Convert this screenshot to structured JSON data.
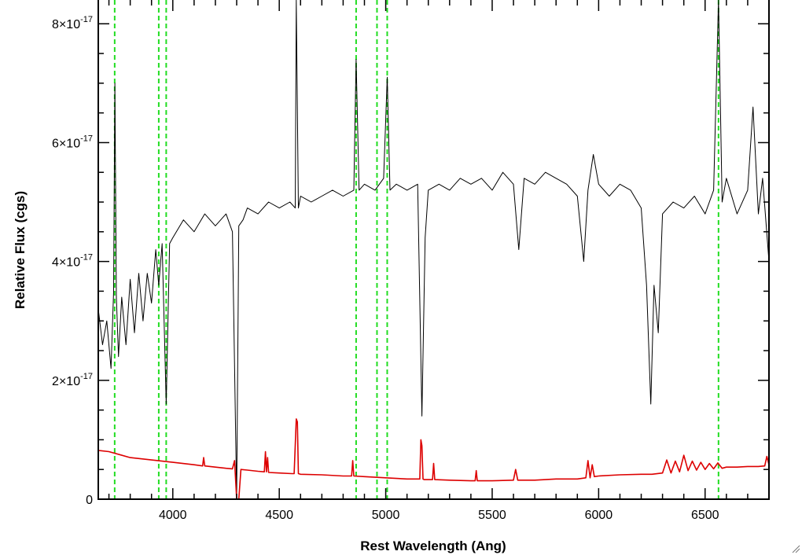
{
  "chart_data": {
    "type": "line",
    "xlabel": "Rest Wavelength (Ang)",
    "ylabel": "Relative Flux (cgs)",
    "xlim": [
      3650,
      6800
    ],
    "ylim": [
      0,
      8.4e-17
    ],
    "x_ticks": [
      {
        "value": 4000,
        "label": "4000"
      },
      {
        "value": 4500,
        "label": "4500"
      },
      {
        "value": 5000,
        "label": "5000"
      },
      {
        "value": 5500,
        "label": "5500"
      },
      {
        "value": 6000,
        "label": "6000"
      },
      {
        "value": 6500,
        "label": "6500"
      }
    ],
    "y_ticks": [
      {
        "value": 0,
        "mantissa": "0",
        "exponent": ""
      },
      {
        "value": 2e-17,
        "mantissa": "2×10",
        "exponent": "-17"
      },
      {
        "value": 4e-17,
        "mantissa": "4×10",
        "exponent": "-17"
      },
      {
        "value": 6e-17,
        "mantissa": "6×10",
        "exponent": "-17"
      },
      {
        "value": 8e-17,
        "mantissa": "8×10",
        "exponent": "-17"
      }
    ],
    "reference_lines": {
      "color": "#22dd22",
      "x": [
        3727,
        3934,
        3969,
        4861,
        4959,
        5007,
        6563
      ]
    },
    "series": [
      {
        "color": "#000000",
        "x": [
          3650,
          3670,
          3690,
          3710,
          3722,
          3728,
          3735,
          3745,
          3760,
          3780,
          3800,
          3820,
          3840,
          3860,
          3880,
          3900,
          3920,
          3934,
          3950,
          3969,
          3985,
          4000,
          4050,
          4100,
          4150,
          4200,
          4250,
          4280,
          4300,
          4310,
          4330,
          4350,
          4400,
          4450,
          4500,
          4550,
          4575,
          4580,
          4590,
          4600,
          4650,
          4700,
          4750,
          4800,
          4850,
          4861,
          4875,
          4900,
          4950,
          4990,
          5007,
          5020,
          5050,
          5100,
          5150,
          5170,
          5185,
          5200,
          5250,
          5300,
          5350,
          5400,
          5450,
          5500,
          5550,
          5600,
          5625,
          5650,
          5700,
          5750,
          5800,
          5850,
          5900,
          5930,
          5950,
          5975,
          6000,
          6050,
          6100,
          6150,
          6200,
          6225,
          6245,
          6260,
          6280,
          6300,
          6350,
          6400,
          6450,
          6500,
          6540,
          6563,
          6580,
          6600,
          6650,
          6700,
          6725,
          6750,
          6770,
          6800
        ],
        "y": [
          3.2e-17,
          2.6e-17,
          3e-17,
          2.2e-17,
          3.5e-17,
          7e-17,
          3.4e-17,
          2.4e-17,
          3.4e-17,
          2.6e-17,
          3.7e-17,
          2.8e-17,
          3.8e-17,
          3e-17,
          3.8e-17,
          3.3e-17,
          4.2e-17,
          3.6e-17,
          4.3e-17,
          1.6e-17,
          4.3e-17,
          4.4e-17,
          4.7e-17,
          4.5e-17,
          4.8e-17,
          4.6e-17,
          4.8e-17,
          4.5e-17,
          0.0,
          4.6e-17,
          4.7e-17,
          4.9e-17,
          4.8e-17,
          5e-17,
          4.9e-17,
          5e-17,
          4.9e-17,
          8.4e-17,
          4.9e-17,
          5.1e-17,
          5e-17,
          5.1e-17,
          5.2e-17,
          5.1e-17,
          5.2e-17,
          7.4e-17,
          5.2e-17,
          5.3e-17,
          5.2e-17,
          5.4e-17,
          7.1e-17,
          5.2e-17,
          5.3e-17,
          5.2e-17,
          5.3e-17,
          1.4e-17,
          4.4e-17,
          5.2e-17,
          5.3e-17,
          5.2e-17,
          5.4e-17,
          5.3e-17,
          5.4e-17,
          5.2e-17,
          5.5e-17,
          5.3e-17,
          4.2e-17,
          5.4e-17,
          5.3e-17,
          5.5e-17,
          5.4e-17,
          5.3e-17,
          5.1e-17,
          4e-17,
          5.2e-17,
          5.8e-17,
          5.3e-17,
          5.1e-17,
          5.3e-17,
          5.2e-17,
          4.9e-17,
          3.6e-17,
          1.6e-17,
          3.6e-17,
          2.8e-17,
          4.8e-17,
          5e-17,
          4.9e-17,
          5.1e-17,
          4.8e-17,
          5.2e-17,
          8.4e-17,
          5e-17,
          5.4e-17,
          4.8e-17,
          5.2e-17,
          6.6e-17,
          4.8e-17,
          5.4e-17,
          4e-17
        ]
      },
      {
        "color": "#dd0000",
        "x": [
          3650,
          3700,
          3750,
          3800,
          3900,
          4000,
          4100,
          4140,
          4145,
          4150,
          4200,
          4250,
          4280,
          4290,
          4300,
          4310,
          4320,
          4350,
          4400,
          4430,
          4435,
          4440,
          4445,
          4450,
          4500,
          4560,
          4570,
          4580,
          4585,
          4590,
          4600,
          4700,
          4800,
          4840,
          4845,
          4850,
          4900,
          5000,
          5100,
          5160,
          5165,
          5170,
          5175,
          5180,
          5200,
          5220,
          5225,
          5230,
          5300,
          5400,
          5420,
          5425,
          5430,
          5500,
          5600,
          5610,
          5620,
          5700,
          5800,
          5900,
          5940,
          5950,
          5960,
          5970,
          5980,
          6000,
          6100,
          6200,
          6250,
          6300,
          6320,
          6340,
          6360,
          6380,
          6400,
          6420,
          6440,
          6460,
          6480,
          6500,
          6520,
          6540,
          6560,
          6580,
          6600,
          6650,
          6700,
          6750,
          6780,
          6790,
          6800
        ],
        "y": [
          8.2e-18,
          8e-18,
          7.5e-18,
          7e-18,
          6.6e-18,
          6.2e-18,
          5.8e-18,
          5.6e-18,
          7e-18,
          5.6e-18,
          5.4e-18,
          5.2e-18,
          5.1e-18,
          6.5e-18,
          0.0,
          0.0,
          5e-18,
          4.9e-18,
          4.7e-18,
          4.6e-18,
          8e-18,
          4.6e-18,
          7e-18,
          4.5e-18,
          4.4e-18,
          4.3e-18,
          4.3e-18,
          1.35e-17,
          1.3e-17,
          4.3e-18,
          4.2e-18,
          4.1e-18,
          3.9e-18,
          3.9e-18,
          6.5e-18,
          3.9e-18,
          3.8e-18,
          3.6e-18,
          3.4e-18,
          3.4e-18,
          1e-17,
          9e-18,
          3.4e-18,
          3.3e-18,
          3.3e-18,
          3.3e-18,
          6e-18,
          3.3e-18,
          3.2e-18,
          3.1e-18,
          3.1e-18,
          4.8e-18,
          3.1e-18,
          3.1e-18,
          3.2e-18,
          5e-18,
          3.2e-18,
          3.2e-18,
          3.4e-18,
          3.4e-18,
          3.6e-18,
          6.5e-18,
          3.6e-18,
          5.8e-18,
          3.8e-18,
          3.9e-18,
          4.1e-18,
          4.2e-18,
          4.2e-18,
          4.4e-18,
          6.6e-18,
          4.4e-18,
          6.4e-18,
          4.6e-18,
          7.4e-18,
          4.8e-18,
          6.4e-18,
          4.9e-18,
          6.2e-18,
          5e-18,
          6e-18,
          5.1e-18,
          6.1e-18,
          5.2e-18,
          5.4e-18,
          5.4e-18,
          5.5e-18,
          5.5e-18,
          5.6e-18,
          7.2e-18,
          5.8e-18
        ]
      }
    ]
  }
}
